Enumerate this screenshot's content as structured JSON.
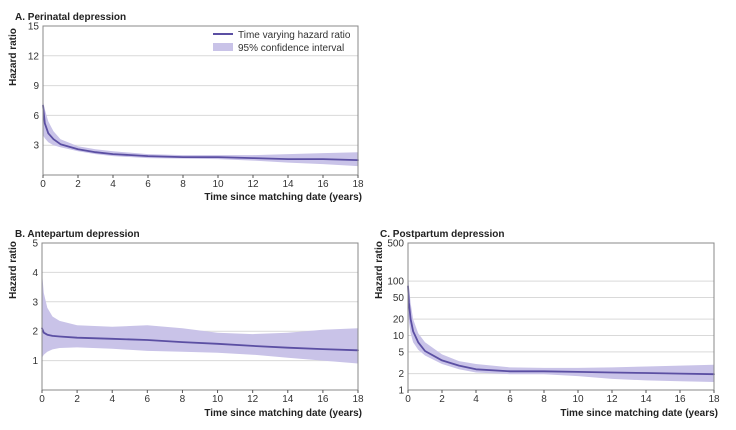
{
  "chart_data": [
    {
      "type": "line",
      "title": "A. Perinatal depression",
      "xlabel": "Time since matching date (years)",
      "ylabel": "Hazard ratio",
      "xlim": [
        0,
        18
      ],
      "ylim": [
        0,
        15
      ],
      "x_ticks": [
        "0",
        "2",
        "4",
        "6",
        "8",
        "10",
        "12",
        "14",
        "16",
        "18"
      ],
      "y_ticks": [
        "3",
        "6",
        "9",
        "12",
        "15"
      ],
      "y_tick_values": [
        3,
        6,
        9,
        12,
        15
      ],
      "y_scale": "linear",
      "grid": "horizontal",
      "legend": {
        "placement": "top-right",
        "line_label": "Time varying hazard ratio",
        "band_label": "95% confidence interval"
      },
      "series": [
        {
          "name": "Time varying hazard ratio",
          "x": [
            0,
            0.1,
            0.3,
            0.6,
            1,
            2,
            3,
            4,
            6,
            8,
            10,
            12,
            14,
            16,
            18
          ],
          "y": [
            7.0,
            5.2,
            4.2,
            3.6,
            3.1,
            2.6,
            2.3,
            2.1,
            1.9,
            1.8,
            1.8,
            1.7,
            1.6,
            1.6,
            1.5
          ],
          "lower": [
            4.0,
            3.7,
            3.3,
            3.0,
            2.8,
            2.4,
            2.1,
            1.9,
            1.7,
            1.65,
            1.6,
            1.45,
            1.25,
            1.1,
            0.9
          ],
          "upper": [
            7.5,
            6.6,
            5.4,
            4.4,
            3.6,
            2.9,
            2.6,
            2.4,
            2.1,
            2.0,
            2.0,
            2.0,
            2.1,
            2.2,
            2.3
          ]
        }
      ],
      "colors": {
        "line": "#5b4fa3",
        "band": "#c9c3e8",
        "grid": "#d9d9d9"
      }
    },
    {
      "type": "line",
      "title": "B. Antepartum depression",
      "xlabel": "Time since matching date (years)",
      "ylabel": "Hazard ratio",
      "xlim": [
        0,
        18
      ],
      "ylim": [
        0,
        5
      ],
      "x_ticks": [
        "0",
        "2",
        "4",
        "6",
        "8",
        "10",
        "12",
        "14",
        "16",
        "18"
      ],
      "y_ticks": [
        "1",
        "2",
        "3",
        "4",
        "5"
      ],
      "y_tick_values": [
        1,
        2,
        3,
        4,
        5
      ],
      "y_scale": "linear",
      "grid": "horizontal",
      "series": [
        {
          "name": "Time varying hazard ratio",
          "x": [
            0,
            0.1,
            0.3,
            0.6,
            1,
            2,
            4,
            6,
            8,
            10,
            12,
            14,
            16,
            18
          ],
          "y": [
            2.1,
            1.95,
            1.88,
            1.84,
            1.82,
            1.78,
            1.74,
            1.7,
            1.63,
            1.57,
            1.5,
            1.44,
            1.39,
            1.35
          ],
          "lower": [
            1.1,
            1.2,
            1.3,
            1.38,
            1.43,
            1.45,
            1.4,
            1.33,
            1.3,
            1.27,
            1.2,
            1.1,
            1.0,
            0.9
          ],
          "upper": [
            4.0,
            3.3,
            2.8,
            2.5,
            2.35,
            2.2,
            2.15,
            2.2,
            2.1,
            1.95,
            1.9,
            1.95,
            2.05,
            2.1
          ]
        }
      ],
      "colors": {
        "line": "#5b4fa3",
        "band": "#c9c3e8",
        "grid": "#d9d9d9"
      }
    },
    {
      "type": "line",
      "title": "C. Postpartum depression",
      "xlabel": "Time since matching date (years)",
      "ylabel": "Hazard ratio",
      "xlim": [
        0,
        18
      ],
      "ylim": [
        1,
        500
      ],
      "x_ticks": [
        "0",
        "2",
        "4",
        "6",
        "8",
        "10",
        "12",
        "14",
        "16",
        "18"
      ],
      "y_ticks": [
        "1",
        "2",
        "5",
        "10",
        "20",
        "50",
        "100",
        "500"
      ],
      "y_tick_values": [
        1,
        2,
        5,
        10,
        20,
        50,
        100,
        500
      ],
      "y_scale": "log",
      "grid": "horizontal",
      "series": [
        {
          "name": "Time varying hazard ratio",
          "x": [
            0,
            0.05,
            0.15,
            0.3,
            0.6,
            1,
            2,
            3,
            4,
            6,
            8,
            10,
            12,
            14,
            16,
            18
          ],
          "y": [
            80,
            40,
            20,
            12,
            7.5,
            5.2,
            3.5,
            2.8,
            2.4,
            2.2,
            2.2,
            2.15,
            2.1,
            2.05,
            2.0,
            1.95
          ],
          "lower": [
            30,
            18,
            11,
            7.5,
            5.5,
            4.3,
            3.0,
            2.4,
            2.1,
            1.95,
            1.95,
            1.8,
            1.6,
            1.5,
            1.45,
            1.4
          ],
          "upper": [
            150,
            80,
            40,
            20,
            11,
            7.5,
            4.5,
            3.4,
            3.0,
            2.6,
            2.55,
            2.55,
            2.6,
            2.7,
            2.8,
            2.9
          ]
        }
      ],
      "colors": {
        "line": "#5b4fa3",
        "band": "#c9c3e8",
        "grid": "#d9d9d9"
      }
    }
  ]
}
